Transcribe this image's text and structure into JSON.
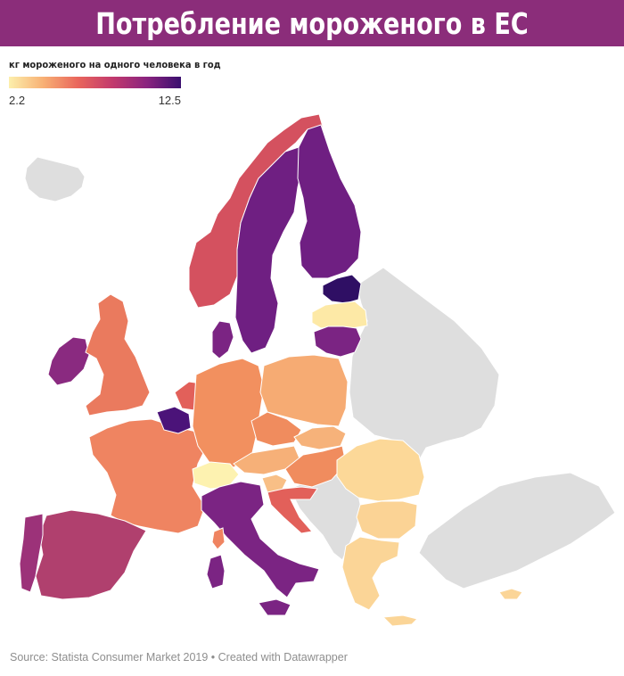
{
  "title": "Потребление мороженого в ЕС",
  "legend": {
    "label": "кг мороженого на одного человека в год",
    "min": "2.2",
    "max": "12.5",
    "min_value": 2.2,
    "max_value": 12.5,
    "gradient": [
      "#fcefac",
      "#f8b074",
      "#e9665c",
      "#c33a6d",
      "#8a247f",
      "#3b0f6f"
    ]
  },
  "colors": {
    "title_bar": "#8b2d7a",
    "no_data": "#dedede"
  },
  "map_data": {
    "type": "choropleth",
    "units": "kg per person per year",
    "regions": [
      {
        "id": "estonia",
        "color": "#2f0f64"
      },
      {
        "id": "belgium",
        "color": "#4b1379"
      },
      {
        "id": "finland",
        "color": "#6f1f82"
      },
      {
        "id": "sweden",
        "color": "#6f1f82"
      },
      {
        "id": "lithuania",
        "color": "#7b2483"
      },
      {
        "id": "denmark",
        "color": "#7b2483"
      },
      {
        "id": "italy",
        "color": "#7b2483"
      },
      {
        "id": "ireland",
        "color": "#8a2a80"
      },
      {
        "id": "portugal",
        "color": "#9c3279"
      },
      {
        "id": "spain",
        "color": "#b0406e"
      },
      {
        "id": "norway",
        "color": "#d4515f"
      },
      {
        "id": "netherlands",
        "color": "#e2605a"
      },
      {
        "id": "croatia",
        "color": "#e2605a"
      },
      {
        "id": "uk",
        "color": "#ea7a5e"
      },
      {
        "id": "france",
        "color": "#ef8461"
      },
      {
        "id": "germany",
        "color": "#f2905f"
      },
      {
        "id": "czechia",
        "color": "#f08c5e"
      },
      {
        "id": "hungary",
        "color": "#f08c5e"
      },
      {
        "id": "austria",
        "color": "#f6b078"
      },
      {
        "id": "slovakia",
        "color": "#f6b27a"
      },
      {
        "id": "poland",
        "color": "#f6ab73"
      },
      {
        "id": "slovenia",
        "color": "#f8bf86"
      },
      {
        "id": "romania",
        "color": "#fcd898"
      },
      {
        "id": "bulgaria",
        "color": "#fbd395"
      },
      {
        "id": "greece",
        "color": "#fbd597"
      },
      {
        "id": "cyprus",
        "color": "#fbd597"
      },
      {
        "id": "switzerland",
        "color": "#fdf2b0"
      },
      {
        "id": "latvia",
        "color": "#fde9a6"
      },
      {
        "id": "iceland",
        "color": "#dedede"
      },
      {
        "id": "belarus_ukraine",
        "color": "#dedede"
      },
      {
        "id": "balkans",
        "color": "#dedede"
      },
      {
        "id": "turkey",
        "color": "#dedede"
      }
    ]
  },
  "source": "Source: Statista Consumer Market 2019 • Created with Datawrapper"
}
